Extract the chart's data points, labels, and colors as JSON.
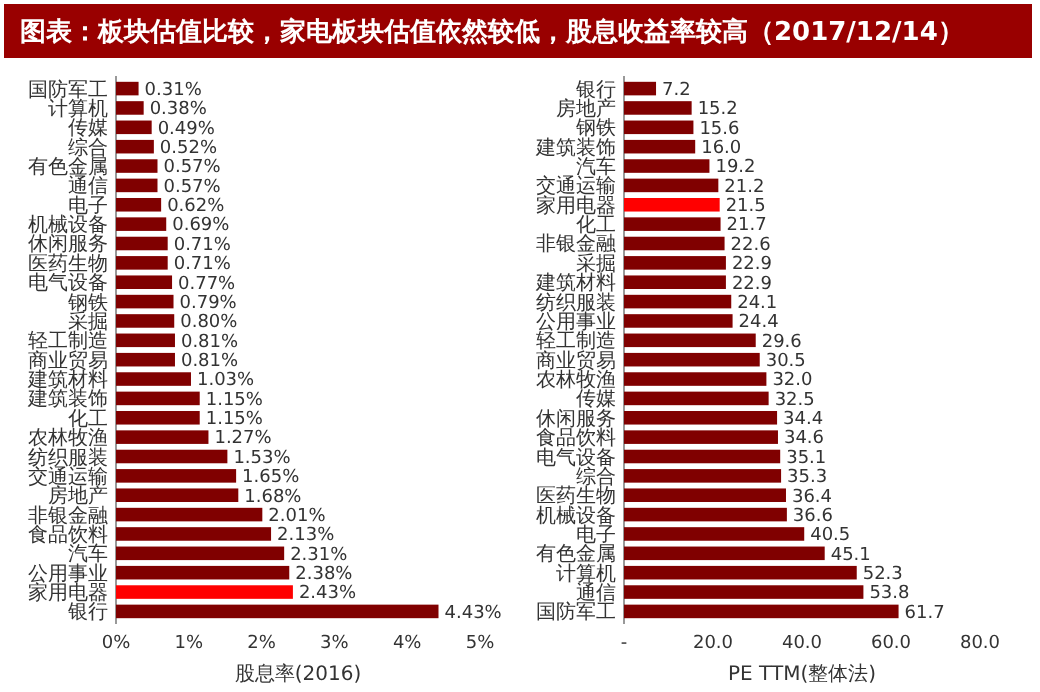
{
  "chart_data": [
    {
      "type": "bar",
      "orientation": "horizontal",
      "title": "图表：板块估值比较，家电板块估值依然较低，股息收益率较高（2017/12/14）",
      "xlabel": "股息率(2016)",
      "categories": [
        "国防军工",
        "计算机",
        "传媒",
        "综合",
        "有色金属",
        "通信",
        "电子",
        "机械设备",
        "休闲服务",
        "医药生物",
        "电气设备",
        "钢铁",
        "采掘",
        "轻工制造",
        "商业贸易",
        "建筑材料",
        "建筑装饰",
        "化工",
        "农林牧渔",
        "纺织服装",
        "交通运输",
        "房地产",
        "非银金融",
        "食品饮料",
        "汽车",
        "公用事业",
        "家用电器",
        "银行"
      ],
      "values": [
        0.31,
        0.38,
        0.49,
        0.52,
        0.57,
        0.57,
        0.62,
        0.69,
        0.71,
        0.71,
        0.77,
        0.79,
        0.8,
        0.81,
        0.81,
        1.03,
        1.15,
        1.15,
        1.27,
        1.53,
        1.65,
        1.68,
        2.01,
        2.13,
        2.31,
        2.38,
        2.43,
        4.43
      ],
      "value_labels": [
        "0.31%",
        "0.38%",
        "0.49%",
        "0.52%",
        "0.57%",
        "0.57%",
        "0.62%",
        "0.69%",
        "0.71%",
        "0.71%",
        "0.77%",
        "0.79%",
        "0.80%",
        "0.81%",
        "0.81%",
        "1.03%",
        "1.15%",
        "1.15%",
        "1.27%",
        "1.53%",
        "1.65%",
        "1.68%",
        "2.01%",
        "2.13%",
        "2.31%",
        "2.38%",
        "2.43%",
        "4.43%"
      ],
      "colors": [
        "#800000",
        "#800000",
        "#800000",
        "#800000",
        "#800000",
        "#800000",
        "#800000",
        "#800000",
        "#800000",
        "#800000",
        "#800000",
        "#800000",
        "#800000",
        "#800000",
        "#800000",
        "#800000",
        "#800000",
        "#800000",
        "#800000",
        "#800000",
        "#800000",
        "#800000",
        "#800000",
        "#800000",
        "#800000",
        "#800000",
        "#ff0000",
        "#800000"
      ],
      "xlim": [
        0,
        5
      ],
      "xticks": [
        {
          "value": 0,
          "label": "0%"
        },
        {
          "value": 1,
          "label": "1%"
        },
        {
          "value": 2,
          "label": "2%"
        },
        {
          "value": 3,
          "label": "3%"
        },
        {
          "value": 4,
          "label": "4%"
        },
        {
          "value": 5,
          "label": "5%"
        }
      ]
    },
    {
      "type": "bar",
      "orientation": "horizontal",
      "xlabel": "PE TTM(整体法)",
      "categories": [
        "银行",
        "房地产",
        "钢铁",
        "建筑装饰",
        "汽车",
        "交通运输",
        "家用电器",
        "化工",
        "非银金融",
        "采掘",
        "建筑材料",
        "纺织服装",
        "公用事业",
        "轻工制造",
        "商业贸易",
        "农林牧渔",
        "传媒",
        "休闲服务",
        "食品饮料",
        "电气设备",
        "综合",
        "医药生物",
        "机械设备",
        "电子",
        "有色金属",
        "计算机",
        "通信",
        "国防军工"
      ],
      "values": [
        7.2,
        15.2,
        15.6,
        16.0,
        19.2,
        21.2,
        21.5,
        21.7,
        22.6,
        22.9,
        22.9,
        24.1,
        24.4,
        29.6,
        30.5,
        32.0,
        32.5,
        34.4,
        34.6,
        35.1,
        35.3,
        36.4,
        36.6,
        40.5,
        45.1,
        52.3,
        53.8,
        61.7
      ],
      "value_labels": [
        "7.2",
        "15.2",
        "15.6",
        "16.0",
        "19.2",
        "21.2",
        "21.5",
        "21.7",
        "22.6",
        "22.9",
        "22.9",
        "24.1",
        "24.4",
        "29.6",
        "30.5",
        "32.0",
        "32.5",
        "34.4",
        "34.6",
        "35.1",
        "35.3",
        "36.4",
        "36.6",
        "40.5",
        "45.1",
        "52.3",
        "53.8",
        "61.7"
      ],
      "colors": [
        "#800000",
        "#800000",
        "#800000",
        "#800000",
        "#800000",
        "#800000",
        "#ff0000",
        "#800000",
        "#800000",
        "#800000",
        "#800000",
        "#800000",
        "#800000",
        "#800000",
        "#800000",
        "#800000",
        "#800000",
        "#800000",
        "#800000",
        "#800000",
        "#800000",
        "#800000",
        "#800000",
        "#800000",
        "#800000",
        "#800000",
        "#800000",
        "#800000"
      ],
      "xlim": [
        0,
        80
      ],
      "xticks": [
        {
          "value": 0,
          "label": "-"
        },
        {
          "value": 20,
          "label": "20.0"
        },
        {
          "value": 40,
          "label": "40.0"
        },
        {
          "value": 60,
          "label": "60.0"
        },
        {
          "value": 80,
          "label": "80.0"
        }
      ]
    }
  ]
}
